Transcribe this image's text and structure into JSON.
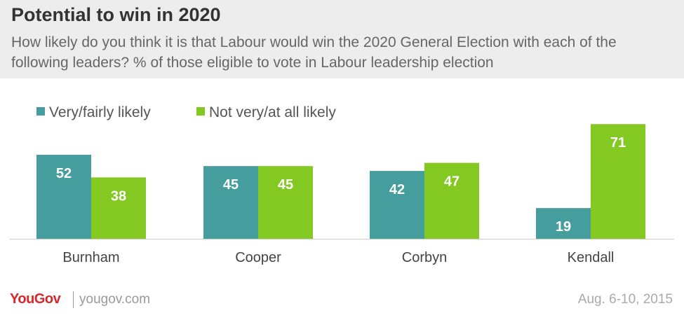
{
  "header": {
    "title": "Potential to win in 2020",
    "subtitle": "How likely do you think it is that Labour would win the 2020 General Election with each of the following leaders? % of those eligible to vote in Labour leadership election"
  },
  "colors": {
    "series_1": "#469d9d",
    "series_2": "#84c922",
    "header_bg": "#ededed",
    "brand": "#d9262b"
  },
  "chart_data": {
    "type": "bar",
    "categories": [
      "Burnham",
      "Cooper",
      "Corbyn",
      "Kendall"
    ],
    "series": [
      {
        "name": "Very/fairly likely",
        "values": [
          52,
          45,
          42,
          19
        ]
      },
      {
        "name": "Not very/at all likely",
        "values": [
          38,
          45,
          47,
          71
        ]
      }
    ],
    "ylim": [
      0,
      75
    ],
    "grid": false,
    "legend": "top-left",
    "data_labels": true
  },
  "footer": {
    "brand": "YouGov",
    "site": "yougov.com",
    "date": "Aug. 6-10, 2015"
  }
}
